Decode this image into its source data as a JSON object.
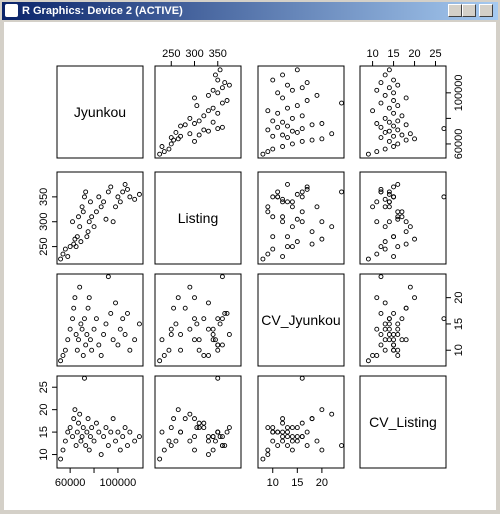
{
  "window_title": "R Graphics: Device 2 (ACTIVE)",
  "chart_data": {
    "type": "pairs",
    "variables": [
      {
        "name": "Jyunkou",
        "lim": [
          49000,
          121000
        ],
        "ticks": [
          60000,
          80000,
          100000
        ],
        "values": [
          52000,
          54000,
          56000,
          58000,
          60000,
          62000,
          63000,
          64000,
          65000,
          66000,
          67000,
          68000,
          69000,
          70000,
          71000,
          72000,
          73000,
          74000,
          75000,
          76000,
          77000,
          78000,
          80000,
          82000,
          84000,
          86000,
          88000,
          90000,
          92000,
          94000,
          96000,
          98000,
          100000,
          102000,
          104000,
          106000,
          108000,
          110000,
          114000,
          118000
        ]
      },
      {
        "name": "Listing",
        "lim": [
          215,
          400
        ],
        "ticks": [
          250,
          300,
          350
        ],
        "values": [
          225,
          235,
          245,
          230,
          250,
          300,
          255,
          265,
          250,
          270,
          310,
          290,
          260,
          330,
          320,
          350,
          360,
          270,
          280,
          300,
          340,
          310,
          290,
          320,
          350,
          330,
          340,
          305,
          360,
          370,
          300,
          330,
          350,
          340,
          360,
          375,
          365,
          350,
          345,
          355
        ]
      },
      {
        "name": "CV_Jyunkou",
        "lim": [
          7,
          24.5
        ],
        "ticks": [
          10,
          15,
          20
        ],
        "values": [
          8,
          9,
          10,
          12,
          14,
          16,
          18,
          20,
          13,
          10,
          12,
          22,
          15,
          14,
          9,
          16,
          11,
          13,
          18,
          20,
          12,
          10,
          14,
          16,
          11,
          9,
          13,
          15,
          24,
          17,
          12,
          19,
          11,
          14,
          16,
          13,
          17,
          10,
          12,
          15
        ]
      },
      {
        "name": "CV_Listing",
        "lim": [
          7,
          27.5
        ],
        "ticks": [
          10,
          15,
          20,
          25
        ],
        "values": [
          9,
          11,
          13,
          15,
          16,
          14,
          18,
          20,
          12,
          15,
          17,
          19,
          13,
          14,
          16,
          27,
          12,
          15,
          18,
          11,
          14,
          16,
          13,
          17,
          15,
          10,
          14,
          16,
          12,
          15,
          18,
          13,
          15,
          11,
          14,
          16,
          12,
          15,
          13,
          14
        ]
      }
    ]
  }
}
